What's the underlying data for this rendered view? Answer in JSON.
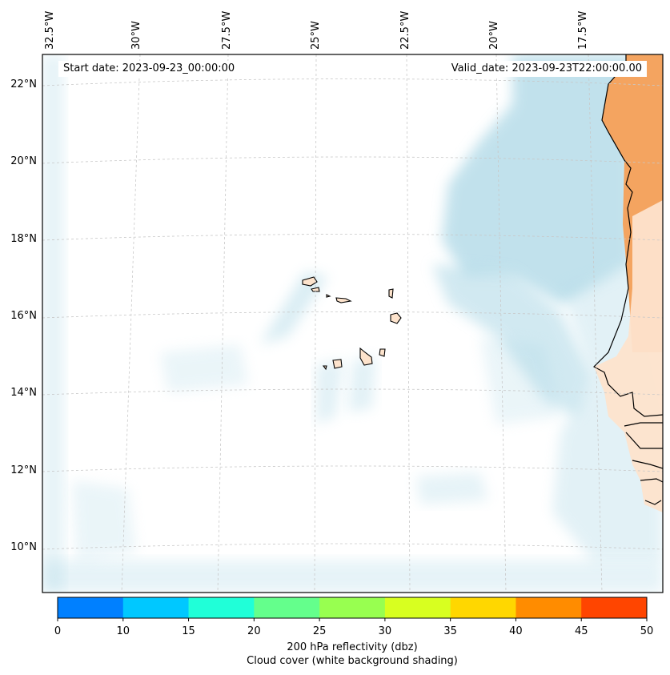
{
  "map": {
    "start_date": "Start date: 2023-09-23_00:00:00",
    "valid_date": "Valid_date: 2023-09-23T22:00:00.00",
    "longitude_labels": [
      "32.5°W",
      "30°W",
      "27.5°W",
      "25°W",
      "22.5°W",
      "20°W",
      "17.5°W"
    ],
    "latitude_labels": [
      "22°N",
      "20°N",
      "18°N",
      "16°N",
      "14°N",
      "12°N",
      "10°N"
    ],
    "extent": {
      "lon_min": -32.6,
      "lon_max": -15.7,
      "lat_min": 8.9,
      "lat_max": 22.8
    },
    "gridlines": true,
    "cloud_cover_color": "#add8e6",
    "land_color": "#f4a460",
    "island_color": "#fde3cc"
  },
  "colorbar": {
    "colors": [
      "#0080ff",
      "#00c8ff",
      "#20ffd8",
      "#64ff8c",
      "#98ff50",
      "#d8ff20",
      "#ffd700",
      "#ff8c00",
      "#ff4500"
    ],
    "ticks": [
      "0",
      "10",
      "15",
      "20",
      "25",
      "30",
      "35",
      "40",
      "45",
      "50"
    ],
    "label_line1": "200 hPa reflectivity (dbz)",
    "label_line2": "Cloud cover (white background shading)"
  }
}
